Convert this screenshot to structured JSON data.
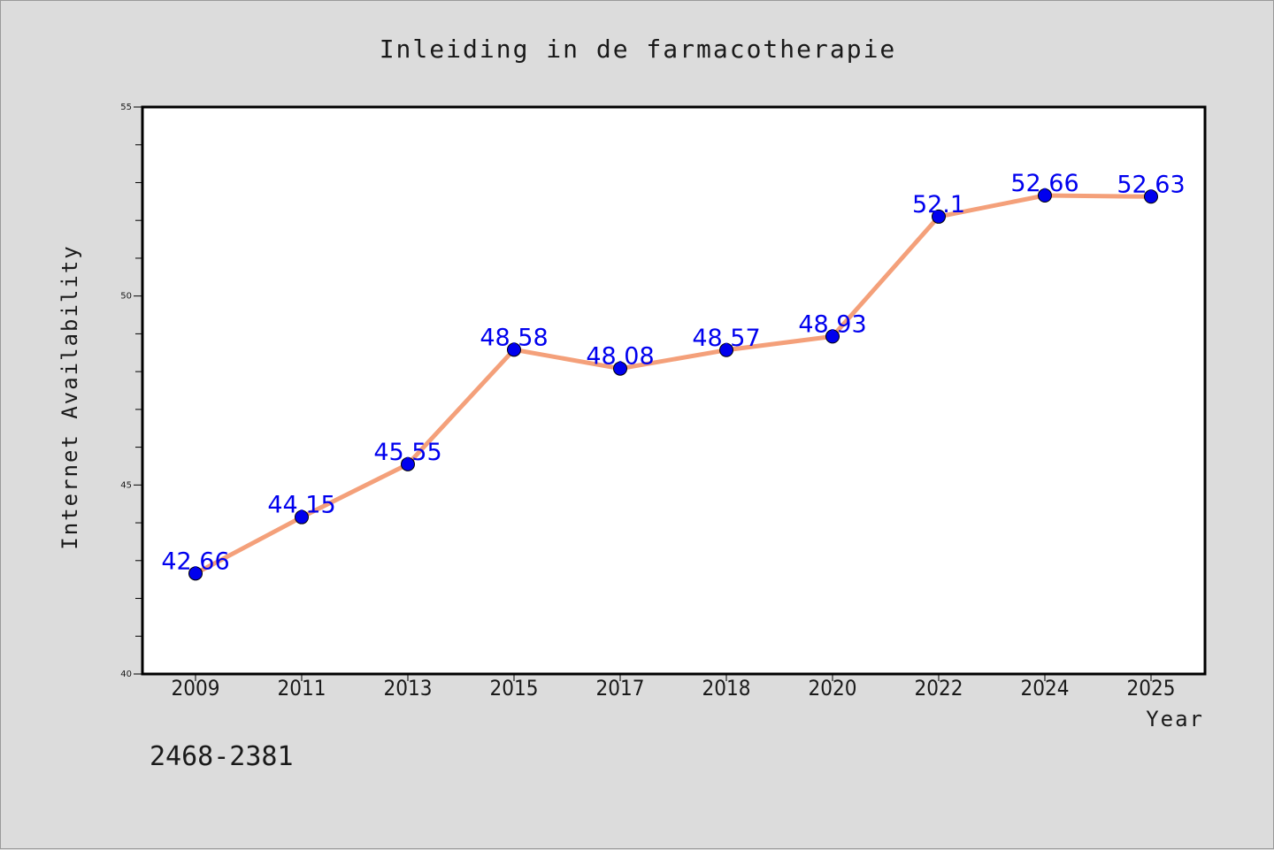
{
  "chart_data": {
    "type": "line",
    "title": "Inleiding in de farmacotherapie",
    "xlabel": "Year",
    "ylabel": "Internet Availability",
    "categories": [
      "2009",
      "2011",
      "2013",
      "2015",
      "2017",
      "2018",
      "2020",
      "2022",
      "2024",
      "2025"
    ],
    "series": [
      {
        "values": [
          42.66,
          44.15,
          45.55,
          48.58,
          48.08,
          48.57,
          48.93,
          52.1,
          52.66,
          52.63
        ],
        "labels": [
          "42.66",
          "44.15",
          "45.55",
          "48.58",
          "48.08",
          "48.57",
          "48.93",
          "52.1",
          "52.66",
          "52.63"
        ],
        "line_color": "#f4a07a",
        "marker_color": "#0000ee",
        "label_color": "#0000ee"
      }
    ],
    "ylim": [
      40,
      55
    ],
    "y_major_ticks": [
      40,
      45,
      50,
      55
    ],
    "y_minor_step": 1,
    "grid": false,
    "legend": "none"
  },
  "footer": {
    "code": "2468-2381"
  }
}
